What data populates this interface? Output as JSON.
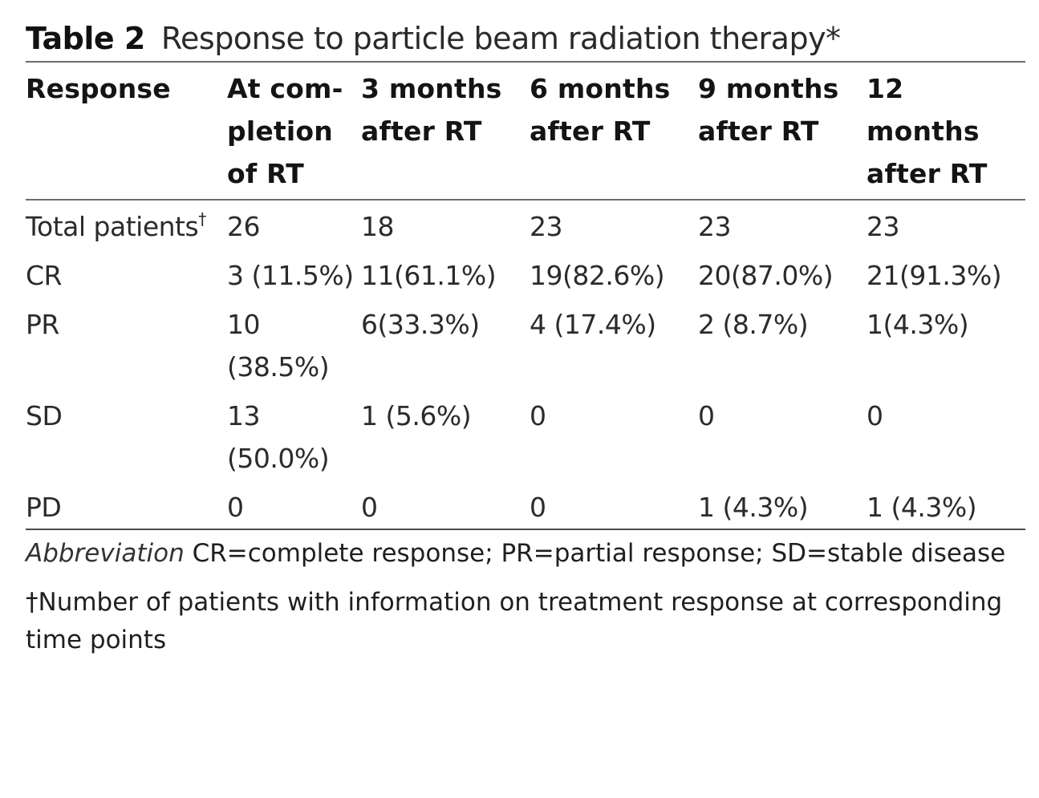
{
  "caption": {
    "label": "Table 2",
    "title": "Response to particle beam radiation therapy*"
  },
  "table": {
    "headers": [
      "Response",
      "At completion of RT",
      "3 months after RT",
      "6 months after RT",
      "9 months after RT",
      "12 months after RT"
    ],
    "rows": [
      {
        "label": "Total patients",
        "label_mark": "†",
        "cells": [
          "26",
          "18",
          "23",
          "23",
          "23"
        ]
      },
      {
        "label": "CR",
        "label_mark": "",
        "cells": [
          "3 (11.5%)",
          "11(61.1%)",
          "19(82.6%)",
          "20(87.0%)",
          "21(91.3%)"
        ]
      },
      {
        "label": "PR",
        "label_mark": "",
        "cells": [
          "10 (38.5%)",
          "6(33.3%)",
          "4 (17.4%)",
          "2 (8.7%)",
          "1(4.3%)"
        ]
      },
      {
        "label": "SD",
        "label_mark": "",
        "cells": [
          "13 (50.0%)",
          "1 (5.6%)",
          "0",
          "0",
          "0"
        ]
      },
      {
        "label": "PD",
        "label_mark": "",
        "cells": [
          "0",
          "0",
          "0",
          "1 (4.3%)",
          "1 (4.3%)"
        ]
      }
    ]
  },
  "footnotes": {
    "abbreviation_label": "Abbreviation",
    "abbreviation_text": "CR=complete response; PR=partial response; SD=stable disease",
    "dagger_note": "†Number of patients with information on treatment response at corresponding time points"
  }
}
